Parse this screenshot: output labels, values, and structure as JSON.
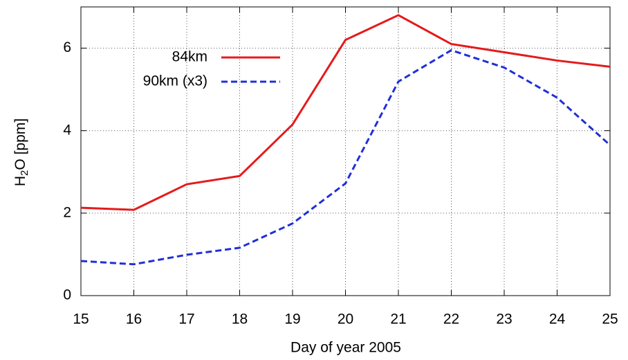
{
  "chart_data": {
    "type": "line",
    "x_label": "Day of year 2005",
    "y_label": [
      "H",
      "2",
      "O [ppm]"
    ],
    "x": [
      15,
      16,
      17,
      18,
      19,
      20,
      21,
      22,
      23,
      24,
      25
    ],
    "series": [
      {
        "name": "84km",
        "color": "#e41a1c",
        "dash": false,
        "values": [
          2.13,
          2.08,
          2.7,
          2.9,
          4.15,
          6.2,
          6.8,
          6.1,
          5.9,
          5.7,
          5.55
        ]
      },
      {
        "name": "90km (x3)",
        "color": "#1f2fd8",
        "dash": true,
        "values": [
          0.84,
          0.76,
          0.99,
          1.16,
          1.75,
          2.72,
          5.19,
          5.95,
          5.53,
          4.8,
          3.65
        ]
      }
    ],
    "xlim": [
      15,
      25
    ],
    "ylim": [
      0,
      7
    ],
    "xticks": [
      15,
      16,
      17,
      18,
      19,
      20,
      21,
      22,
      23,
      24,
      25
    ],
    "yticks": [
      0,
      2,
      4,
      6
    ],
    "grid": true
  }
}
